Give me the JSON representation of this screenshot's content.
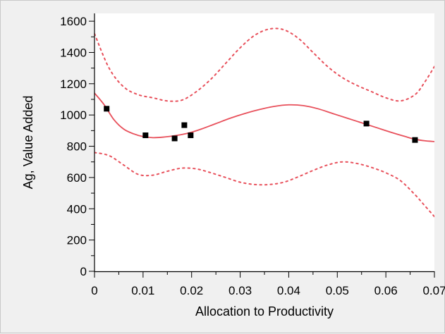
{
  "chart_data": {
    "type": "line",
    "title": "",
    "xlabel": "Allocation to Productivity",
    "ylabel": "Ag, Value Added",
    "xlim": [
      0,
      0.07
    ],
    "ylim": [
      0,
      1650
    ],
    "x_ticks": [
      0,
      0.01,
      0.02,
      0.03,
      0.04,
      0.05,
      0.06,
      0.07
    ],
    "x_tick_labels": [
      "0",
      "0.01",
      "0.02",
      "0.03",
      "0.04",
      "0.05",
      "0.06",
      "0.07"
    ],
    "y_ticks": [
      0,
      200,
      400,
      600,
      800,
      1000,
      1200,
      1400,
      1600
    ],
    "y_tick_labels": [
      "0",
      "200",
      "400",
      "600",
      "800",
      "1000",
      "1200",
      "1400",
      "1600"
    ],
    "grid": false,
    "legend": "none",
    "colors": {
      "fit": "#e8505b",
      "band": "#e8505b",
      "points": "#000000",
      "plot_bg": "#ffffff"
    },
    "series": [
      {
        "kind": "scatter",
        "x": [
          0.0025,
          0.0105,
          0.0165,
          0.0185,
          0.0198,
          0.056,
          0.066
        ],
        "y": [
          1040,
          870,
          850,
          935,
          870,
          945,
          840
        ]
      },
      {
        "kind": "fit",
        "x": [
          0,
          0.002,
          0.004,
          0.006,
          0.008,
          0.01,
          0.012,
          0.014,
          0.016,
          0.018,
          0.02,
          0.022,
          0.025,
          0.028,
          0.031,
          0.034,
          0.037,
          0.04,
          0.043,
          0.046,
          0.049,
          0.052,
          0.055,
          0.058,
          0.061,
          0.064,
          0.066,
          0.068,
          0.07
        ],
        "y": [
          1140,
          1065,
          970,
          910,
          880,
          862,
          855,
          858,
          865,
          875,
          890,
          910,
          945,
          980,
          1010,
          1035,
          1055,
          1065,
          1060,
          1040,
          1010,
          980,
          950,
          920,
          890,
          862,
          845,
          835,
          830
        ]
      },
      {
        "kind": "upper_band",
        "x": [
          0,
          0.003,
          0.006,
          0.009,
          0.012,
          0.015,
          0.018,
          0.021,
          0.024,
          0.027,
          0.03,
          0.033,
          0.036,
          0.039,
          0.042,
          0.045,
          0.048,
          0.051,
          0.054,
          0.057,
          0.06,
          0.063,
          0.066,
          0.068,
          0.07
        ],
        "y": [
          1520,
          1300,
          1180,
          1130,
          1110,
          1090,
          1095,
          1150,
          1230,
          1330,
          1430,
          1510,
          1550,
          1545,
          1490,
          1400,
          1310,
          1240,
          1190,
          1150,
          1110,
          1090,
          1130,
          1210,
          1310
        ]
      },
      {
        "kind": "lower_band",
        "x": [
          0,
          0.003,
          0.006,
          0.009,
          0.012,
          0.015,
          0.018,
          0.021,
          0.024,
          0.027,
          0.03,
          0.033,
          0.036,
          0.039,
          0.042,
          0.045,
          0.048,
          0.051,
          0.054,
          0.057,
          0.06,
          0.063,
          0.066,
          0.068,
          0.07
        ],
        "y": [
          760,
          740,
          680,
          620,
          615,
          640,
          660,
          655,
          630,
          600,
          570,
          555,
          555,
          570,
          605,
          645,
          680,
          700,
          690,
          665,
          630,
          580,
          490,
          420,
          350
        ]
      }
    ]
  }
}
